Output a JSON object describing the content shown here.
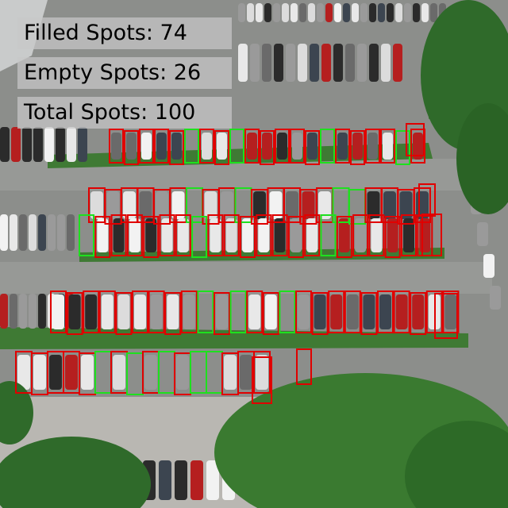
{
  "overlay": {
    "filled_label": "Filled Spots: 74",
    "empty_label": "Empty Spots: 26",
    "total_label": "Total Spots: 100"
  },
  "colors": {
    "occupied_box": "#e00000",
    "empty_box": "#1ee01e",
    "asphalt": "#8d8f8c",
    "grass": "#3f7a34",
    "tree": "#2f6a2a",
    "paving": "#b9b7b2"
  }
}
